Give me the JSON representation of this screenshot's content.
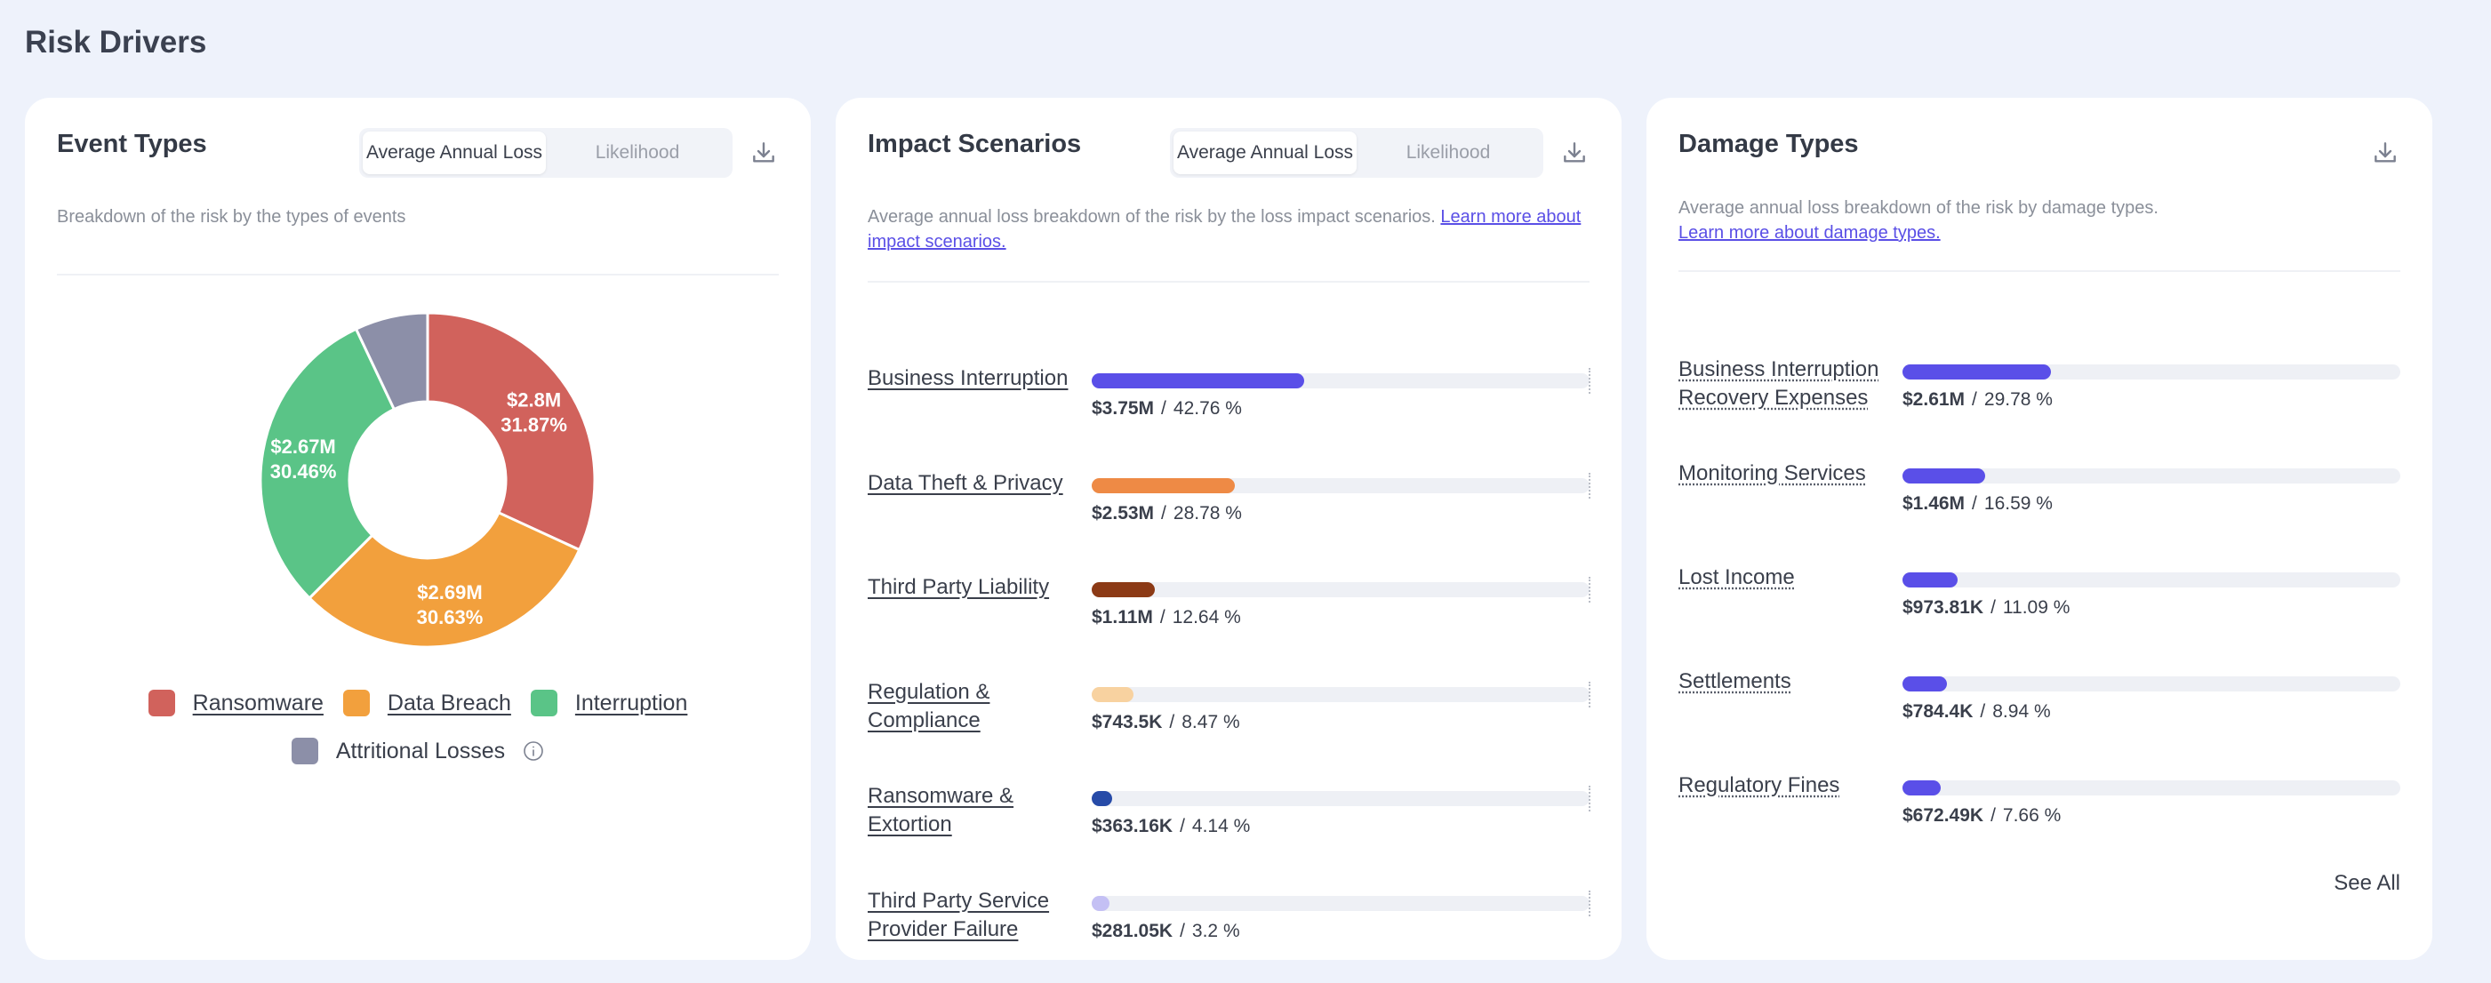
{
  "page": {
    "title": "Risk Drivers"
  },
  "event_types": {
    "title": "Event Types",
    "toggle": {
      "active": "Average Annual Loss",
      "inactive": "Likelihood"
    },
    "description": "Breakdown of the risk by the types of events",
    "donut": [
      {
        "name": "Ransomware",
        "value_label": "$2.8M",
        "pct_label": "31.87%",
        "percent": 31.87,
        "color": "#d1625c"
      },
      {
        "name": "Data Breach",
        "value_label": "$2.69M",
        "pct_label": "30.63%",
        "percent": 30.63,
        "color": "#f2a03d"
      },
      {
        "name": "Interruption",
        "value_label": "$2.67M",
        "pct_label": "30.46%",
        "percent": 30.46,
        "color": "#5ac487"
      },
      {
        "name": "Attritional Losses",
        "value_label": "",
        "pct_label": "",
        "percent": 7.04,
        "color": "#8c8fa8"
      }
    ],
    "legend": {
      "ransomware": "Ransomware",
      "data_breach": "Data Breach",
      "interruption": "Interruption",
      "attritional": "Attritional Losses"
    }
  },
  "impact_scenarios": {
    "title": "Impact Scenarios",
    "toggle": {
      "active": "Average Annual Loss",
      "inactive": "Likelihood"
    },
    "description": "Average annual loss breakdown of the risk by the loss impact scenarios.",
    "learn_more": "Learn more about impact scenarios.",
    "rows": [
      {
        "label": "Business Interruption",
        "value": "$3.75M",
        "pct": "42.76 %",
        "fraction": 0.4276,
        "color": "#5a4fe8"
      },
      {
        "label": "Data Theft & Privacy",
        "value": "$2.53M",
        "pct": "28.78 %",
        "fraction": 0.2878,
        "color": "#ee8a45"
      },
      {
        "label": "Third Party Liability",
        "value": "$1.11M",
        "pct": "12.64 %",
        "fraction": 0.1264,
        "color": "#8c3a16"
      },
      {
        "label": "Regulation & Compliance",
        "value": "$743.5K",
        "pct": "8.47 %",
        "fraction": 0.0847,
        "color": "#f8d2a0"
      },
      {
        "label": "Ransomware & Extortion",
        "value": "$363.16K",
        "pct": "4.14 %",
        "fraction": 0.0414,
        "color": "#274ba8"
      },
      {
        "label": "Third Party Service Provider Failure",
        "value": "$281.05K",
        "pct": "3.2 %",
        "fraction": 0.032,
        "color": "#c4c0f4"
      }
    ]
  },
  "damage_types": {
    "title": "Damage Types",
    "description": "Average annual loss breakdown of the risk by damage types.",
    "learn_more": "Learn more about damage types.",
    "rows": [
      {
        "label": "Business Interruption Recovery Expenses",
        "value": "$2.61M",
        "pct": "29.78 %",
        "fraction": 0.2978,
        "color": "#5a4fe8"
      },
      {
        "label": "Monitoring Services",
        "value": "$1.46M",
        "pct": "16.59 %",
        "fraction": 0.1659,
        "color": "#5a4fe8"
      },
      {
        "label": "Lost Income",
        "value": "$973.81K",
        "pct": "11.09 %",
        "fraction": 0.1109,
        "color": "#5a4fe8"
      },
      {
        "label": "Settlements",
        "value": "$784.4K",
        "pct": "8.94 %",
        "fraction": 0.0894,
        "color": "#5a4fe8"
      },
      {
        "label": "Regulatory Fines",
        "value": "$672.49K",
        "pct": "7.66 %",
        "fraction": 0.0766,
        "color": "#5a4fe8"
      }
    ],
    "see_all": "See All"
  },
  "icons": {
    "download": "download-icon",
    "info": "info-icon"
  }
}
